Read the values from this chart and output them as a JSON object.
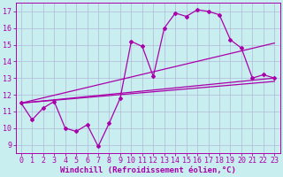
{
  "background_color": "#c8eef0",
  "grid_color": "#b0b8d8",
  "line_color": "#aa00aa",
  "xlabel": "Windchill (Refroidissement éolien,°C)",
  "xlabel_fontsize": 6.5,
  "tick_fontsize": 6,
  "ylim": [
    8.5,
    17.5
  ],
  "xlim": [
    -0.5,
    23.5
  ],
  "yticks": [
    9,
    10,
    11,
    12,
    13,
    14,
    15,
    16,
    17
  ],
  "xticks": [
    0,
    1,
    2,
    3,
    4,
    5,
    6,
    7,
    8,
    9,
    10,
    11,
    12,
    13,
    14,
    15,
    16,
    17,
    18,
    19,
    20,
    21,
    22,
    23
  ],
  "main_line_x": [
    0,
    1,
    2,
    3,
    4,
    5,
    6,
    7,
    8,
    9,
    10,
    11,
    12,
    13,
    14,
    15,
    16,
    17,
    18,
    19,
    20,
    21,
    22,
    23
  ],
  "main_line_y": [
    11.5,
    10.5,
    11.2,
    11.6,
    10.0,
    9.8,
    10.2,
    8.9,
    10.3,
    11.8,
    15.2,
    14.9,
    13.1,
    16.0,
    16.9,
    16.7,
    17.1,
    17.0,
    16.8,
    15.3,
    14.8,
    13.0,
    13.2,
    13.0
  ],
  "line2_x": [
    0,
    23
  ],
  "line2_y": [
    11.5,
    15.1
  ],
  "line3_x": [
    0,
    23
  ],
  "line3_y": [
    11.5,
    13.0
  ],
  "line4_x": [
    0,
    23
  ],
  "line4_y": [
    11.5,
    12.8
  ]
}
